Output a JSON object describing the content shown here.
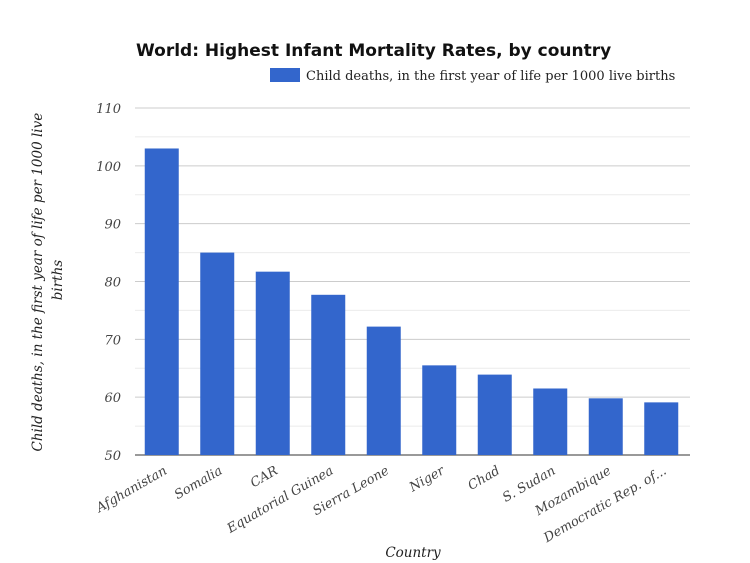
{
  "chart_data": {
    "type": "bar",
    "title": "World: Highest Infant Mortality Rates, by country",
    "xlabel": "Country",
    "ylabel": "Child deaths, in the first year of life per 1000 live births",
    "ylabel_lines": [
      "Child deaths, in the first year of life per 1000 live",
      "births"
    ],
    "legend": {
      "position": "top-right",
      "entries": [
        "Child deaths, in the first year of life per 1000 live births"
      ]
    },
    "categories": [
      "Afghanistan",
      "Somalia",
      "CAR",
      "Equatorial Guinea",
      "Sierra Leone",
      "Niger",
      "Chad",
      "S. Sudan",
      "Mozambique",
      "Democratic Rep. of..."
    ],
    "series": [
      {
        "name": "Child deaths, in the first year of life per 1000 live births",
        "values": [
          103.0,
          85.0,
          81.7,
          77.7,
          72.2,
          65.5,
          63.9,
          61.5,
          59.8,
          59.1
        ],
        "color": "#3366cc"
      }
    ],
    "ylim": [
      50,
      110
    ],
    "yticks": [
      "50",
      "60",
      "70",
      "80",
      "90",
      "100",
      "110"
    ],
    "grid": true
  }
}
